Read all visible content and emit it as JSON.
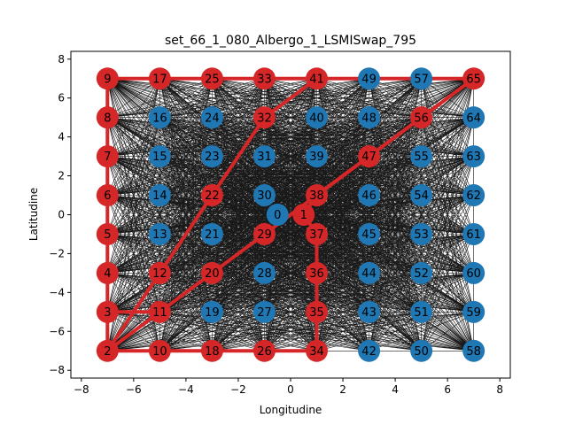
{
  "chart_data": {
    "type": "scatter",
    "title": "set_66_1_080_Albergo_1_LSMISwap_795",
    "xlabel": "Longitudine",
    "ylabel": "Latitudine",
    "xlim": [
      -8.4,
      8.4
    ],
    "ylim": [
      -8.4,
      8.4
    ],
    "xticks": [
      -8,
      -6,
      -4,
      -2,
      0,
      2,
      4,
      6,
      8
    ],
    "yticks": [
      -8,
      -6,
      -4,
      -2,
      0,
      2,
      4,
      6,
      8
    ],
    "grid": false,
    "colors": {
      "red": "#d62728",
      "blue": "#1f77b4",
      "edge": "#000000",
      "route": "#d62728"
    },
    "nodes": [
      {
        "id": "0",
        "x": -0.5,
        "y": 0,
        "color": "blue"
      },
      {
        "id": "1",
        "x": 0.5,
        "y": 0,
        "color": "red"
      },
      {
        "id": "2",
        "x": -7,
        "y": -7,
        "color": "red"
      },
      {
        "id": "3",
        "x": -7,
        "y": -5,
        "color": "red"
      },
      {
        "id": "4",
        "x": -7,
        "y": -3,
        "color": "red"
      },
      {
        "id": "5",
        "x": -7,
        "y": -1,
        "color": "red"
      },
      {
        "id": "6",
        "x": -7,
        "y": 1,
        "color": "red"
      },
      {
        "id": "7",
        "x": -7,
        "y": 3,
        "color": "red"
      },
      {
        "id": "8",
        "x": -7,
        "y": 5,
        "color": "red"
      },
      {
        "id": "9",
        "x": -7,
        "y": 7,
        "color": "red"
      },
      {
        "id": "10",
        "x": -5,
        "y": -7,
        "color": "red"
      },
      {
        "id": "11",
        "x": -5,
        "y": -5,
        "color": "red"
      },
      {
        "id": "12",
        "x": -5,
        "y": -3,
        "color": "red"
      },
      {
        "id": "13",
        "x": -5,
        "y": -1,
        "color": "blue"
      },
      {
        "id": "14",
        "x": -5,
        "y": 1,
        "color": "blue"
      },
      {
        "id": "15",
        "x": -5,
        "y": 3,
        "color": "blue"
      },
      {
        "id": "16",
        "x": -5,
        "y": 5,
        "color": "blue"
      },
      {
        "id": "17",
        "x": -5,
        "y": 7,
        "color": "red"
      },
      {
        "id": "18",
        "x": -3,
        "y": -7,
        "color": "red"
      },
      {
        "id": "19",
        "x": -3,
        "y": -5,
        "color": "blue"
      },
      {
        "id": "20",
        "x": -3,
        "y": -3,
        "color": "red"
      },
      {
        "id": "21",
        "x": -3,
        "y": -1,
        "color": "blue"
      },
      {
        "id": "22",
        "x": -3,
        "y": 1,
        "color": "red"
      },
      {
        "id": "23",
        "x": -3,
        "y": 3,
        "color": "blue"
      },
      {
        "id": "24",
        "x": -3,
        "y": 5,
        "color": "blue"
      },
      {
        "id": "25",
        "x": -3,
        "y": 7,
        "color": "red"
      },
      {
        "id": "26",
        "x": -1,
        "y": -7,
        "color": "red"
      },
      {
        "id": "27",
        "x": -1,
        "y": -5,
        "color": "blue"
      },
      {
        "id": "28",
        "x": -1,
        "y": -3,
        "color": "blue"
      },
      {
        "id": "29",
        "x": -1,
        "y": -1,
        "color": "red"
      },
      {
        "id": "30",
        "x": -1,
        "y": 1,
        "color": "blue"
      },
      {
        "id": "31",
        "x": -1,
        "y": 3,
        "color": "blue"
      },
      {
        "id": "32",
        "x": -1,
        "y": 5,
        "color": "red"
      },
      {
        "id": "33",
        "x": -1,
        "y": 7,
        "color": "red"
      },
      {
        "id": "34",
        "x": 1,
        "y": -7,
        "color": "red"
      },
      {
        "id": "35",
        "x": 1,
        "y": -5,
        "color": "red"
      },
      {
        "id": "36",
        "x": 1,
        "y": -3,
        "color": "red"
      },
      {
        "id": "37",
        "x": 1,
        "y": -1,
        "color": "red"
      },
      {
        "id": "38",
        "x": 1,
        "y": 1,
        "color": "red"
      },
      {
        "id": "39",
        "x": 1,
        "y": 3,
        "color": "blue"
      },
      {
        "id": "40",
        "x": 1,
        "y": 5,
        "color": "blue"
      },
      {
        "id": "41",
        "x": 1,
        "y": 7,
        "color": "red"
      },
      {
        "id": "42",
        "x": 3,
        "y": -7,
        "color": "blue"
      },
      {
        "id": "43",
        "x": 3,
        "y": -5,
        "color": "blue"
      },
      {
        "id": "44",
        "x": 3,
        "y": -3,
        "color": "blue"
      },
      {
        "id": "45",
        "x": 3,
        "y": -1,
        "color": "blue"
      },
      {
        "id": "46",
        "x": 3,
        "y": 1,
        "color": "blue"
      },
      {
        "id": "47",
        "x": 3,
        "y": 3,
        "color": "red"
      },
      {
        "id": "48",
        "x": 3,
        "y": 5,
        "color": "blue"
      },
      {
        "id": "49",
        "x": 3,
        "y": 7,
        "color": "blue"
      },
      {
        "id": "50",
        "x": 5,
        "y": -7,
        "color": "blue"
      },
      {
        "id": "51",
        "x": 5,
        "y": -5,
        "color": "blue"
      },
      {
        "id": "52",
        "x": 5,
        "y": -3,
        "color": "blue"
      },
      {
        "id": "53",
        "x": 5,
        "y": -1,
        "color": "blue"
      },
      {
        "id": "54",
        "x": 5,
        "y": 1,
        "color": "blue"
      },
      {
        "id": "55",
        "x": 5,
        "y": 3,
        "color": "blue"
      },
      {
        "id": "56",
        "x": 5,
        "y": 5,
        "color": "red"
      },
      {
        "id": "57",
        "x": 5,
        "y": 7,
        "color": "blue"
      },
      {
        "id": "58",
        "x": 7,
        "y": -7,
        "color": "blue"
      },
      {
        "id": "59",
        "x": 7,
        "y": -5,
        "color": "blue"
      },
      {
        "id": "60",
        "x": 7,
        "y": -3,
        "color": "blue"
      },
      {
        "id": "61",
        "x": 7,
        "y": -1,
        "color": "blue"
      },
      {
        "id": "62",
        "x": 7,
        "y": 1,
        "color": "blue"
      },
      {
        "id": "63",
        "x": 7,
        "y": 3,
        "color": "blue"
      },
      {
        "id": "64",
        "x": 7,
        "y": 5,
        "color": "blue"
      },
      {
        "id": "65",
        "x": 7,
        "y": 7,
        "color": "red"
      }
    ],
    "routes": [
      [
        "2",
        "3",
        "4",
        "5",
        "6",
        "7",
        "8",
        "9",
        "17",
        "25",
        "33",
        "41",
        "32",
        "22",
        "12",
        "2"
      ],
      [
        "2",
        "10",
        "18",
        "26",
        "34",
        "35",
        "36",
        "37",
        "1",
        "38",
        "47",
        "56",
        "65",
        "41"
      ],
      [
        "3",
        "11",
        "20",
        "29",
        "38",
        "47",
        "65"
      ],
      [
        "2",
        "11"
      ]
    ]
  }
}
